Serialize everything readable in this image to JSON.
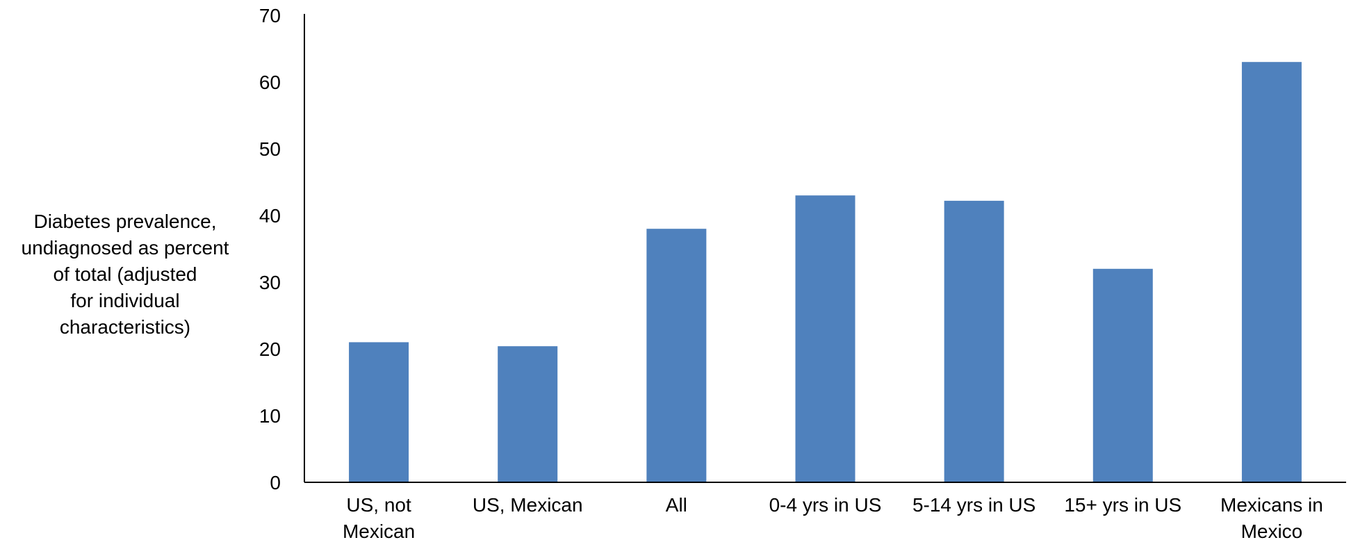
{
  "chart_data": {
    "type": "bar",
    "title": "",
    "xlabel": "",
    "ylabel": "Diabetes prevalence, undiagnosed as percent of total (adjusted for individual characteristics)",
    "ylabel_lines": [
      "Diabetes prevalence,",
      "undiagnosed as percent",
      "of total (adjusted",
      "for individual",
      "characteristics)"
    ],
    "categories": [
      [
        "US, not",
        "Mexican"
      ],
      [
        "US, Mexican"
      ],
      [
        "All"
      ],
      [
        "0-4 yrs in US"
      ],
      [
        "5-14 yrs in US"
      ],
      [
        "15+ yrs in US"
      ],
      [
        "Mexicans in",
        "Mexico"
      ]
    ],
    "values": [
      21,
      20.4,
      38,
      43,
      42.2,
      32,
      63
    ],
    "ylim": [
      0,
      70
    ],
    "yticks": [
      0,
      10,
      20,
      30,
      40,
      50,
      60,
      70
    ],
    "bar_color": "#4F81BD",
    "grid": false,
    "legend": "none"
  }
}
